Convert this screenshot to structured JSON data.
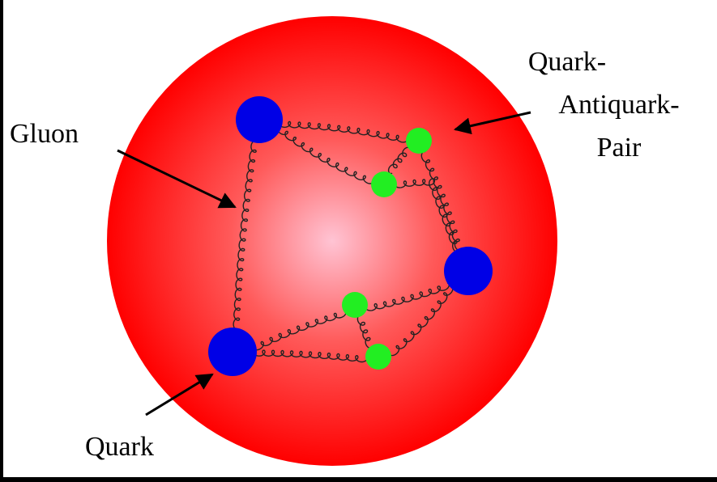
{
  "labels": {
    "gluon": "Gluon",
    "quark": "Quark",
    "pair": [
      "Quark-",
      "Antiquark-",
      "Pair"
    ]
  }
}
